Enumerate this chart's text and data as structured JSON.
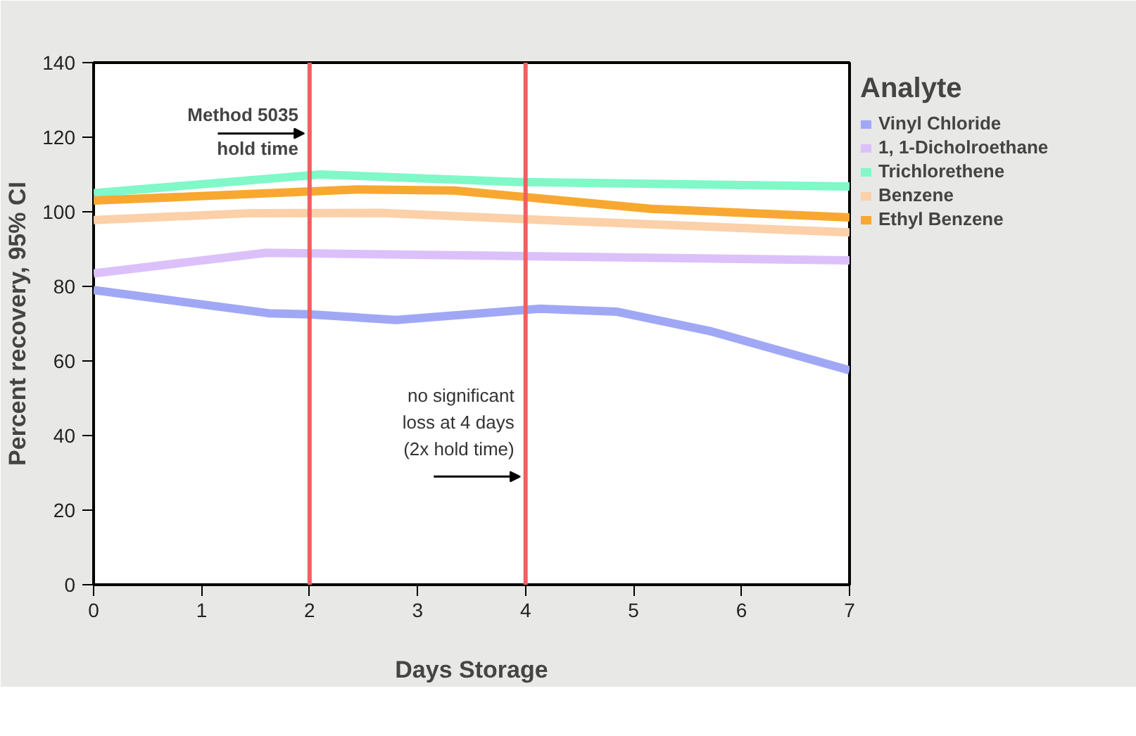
{
  "chart_data": {
    "type": "line",
    "xlabel": "Days Storage",
    "ylabel": "Percent recovery, 95% CI",
    "legend_title": "Analyte",
    "legend": "right",
    "grid": false,
    "xlim": [
      0,
      7
    ],
    "xticks": [
      0,
      1,
      2,
      3,
      4,
      5,
      6,
      7
    ],
    "ylim": [
      0,
      140
    ],
    "yticks": [
      0,
      20,
      40,
      60,
      80,
      100,
      120,
      140
    ],
    "series": [
      {
        "name": "Vinyl Chloride",
        "color": "#a0a8f5",
        "x": [
          0,
          1.62,
          2.0,
          2.8,
          4.13,
          4.85,
          5.71,
          7
        ],
        "values": [
          79,
          72.8,
          72.5,
          71,
          74,
          73.2,
          68,
          57.5
        ]
      },
      {
        "name": "1, 1-Dicholroethane",
        "color": "#dcc0fa",
        "x": [
          0,
          1.6,
          7
        ],
        "values": [
          83.5,
          89,
          87
        ]
      },
      {
        "name": "Trichlorethene",
        "color": "#80f8c8",
        "x": [
          0,
          2.1,
          3.9,
          7
        ],
        "values": [
          105,
          110,
          108,
          106.8
        ]
      },
      {
        "name": "Benzene",
        "color": "#fcd0a8",
        "x": [
          0,
          1.43,
          2.65,
          4,
          7
        ],
        "values": [
          97.8,
          99.6,
          99.7,
          98,
          94.5
        ]
      },
      {
        "name": "Ethyl Benzene",
        "color": "#f8a830",
        "x": [
          0,
          2.44,
          3.34,
          5.16,
          7
        ],
        "values": [
          103,
          106,
          105.7,
          100.8,
          98.5
        ]
      }
    ],
    "ref_lines": [
      {
        "axis": "x",
        "value": 2,
        "color": "#f06060"
      },
      {
        "axis": "x",
        "value": 4,
        "color": "#f06060"
      }
    ],
    "annotations": [
      {
        "text": "Method 5035\nhold time",
        "x": 2,
        "y": 121
      },
      {
        "text": "no significant\nloss at 4 days\n(2x hold time)",
        "x": 4,
        "y": 29
      }
    ]
  }
}
